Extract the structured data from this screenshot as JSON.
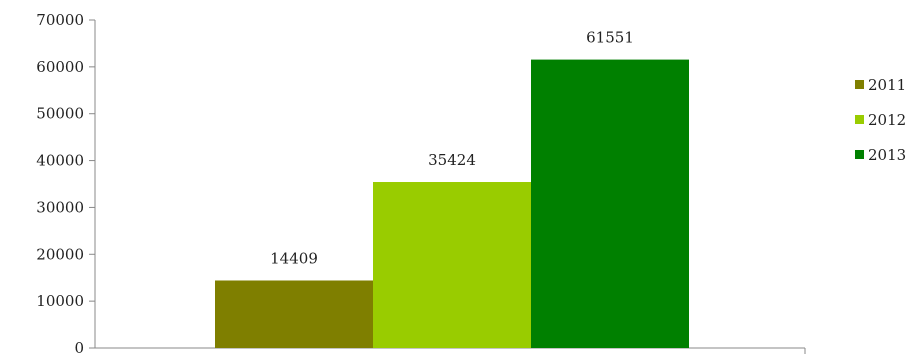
{
  "chart_data": {
    "type": "bar",
    "categories": [
      ""
    ],
    "series": [
      {
        "name": "2011",
        "values": [
          14409
        ],
        "color": "#7f7f00"
      },
      {
        "name": "2012",
        "values": [
          35424
        ],
        "color": "#99cc00"
      },
      {
        "name": "2013",
        "values": [
          61551
        ],
        "color": "#008000"
      }
    ],
    "ylim": [
      0,
      70000
    ],
    "yticks": [
      0,
      10000,
      20000,
      30000,
      40000,
      50000,
      60000,
      70000
    ],
    "grid": false,
    "legend": "right",
    "data_labels": true,
    "title": "",
    "xlabel": "",
    "ylabel": ""
  }
}
